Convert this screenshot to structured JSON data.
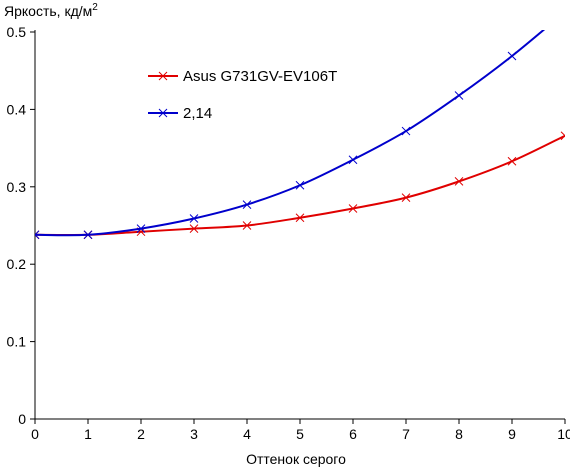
{
  "chart_data": {
    "type": "line",
    "title": "",
    "ylabel": "Яркость, кд/м",
    "ylabel_sup": "2",
    "xlabel": "Оттенок серого",
    "xlim": [
      0,
      10
    ],
    "ylim": [
      0,
      0.5
    ],
    "x_ticks": [
      "0",
      "1",
      "2",
      "3",
      "4",
      "5",
      "6",
      "7",
      "8",
      "9",
      "10"
    ],
    "y_ticks": [
      "0",
      "0.1",
      "0.2",
      "0.3",
      "0.4",
      "0.5"
    ],
    "grid": false,
    "legend_position": "top-left",
    "x": [
      0,
      1,
      2,
      3,
      4,
      5,
      6,
      7,
      8,
      9,
      10
    ],
    "series": [
      {
        "name": "Asus G731GV-EV106T",
        "color": "#e00000",
        "marker": "x",
        "values": [
          0.238,
          0.238,
          0.242,
          0.246,
          0.25,
          0.26,
          0.272,
          0.286,
          0.307,
          0.333,
          0.366
        ]
      },
      {
        "name": "2,14",
        "color": "#0000cc",
        "marker": "x",
        "values": [
          0.238,
          0.238,
          0.246,
          0.259,
          0.277,
          0.302,
          0.335,
          0.372,
          0.418,
          0.469,
          0.526
        ]
      }
    ]
  }
}
